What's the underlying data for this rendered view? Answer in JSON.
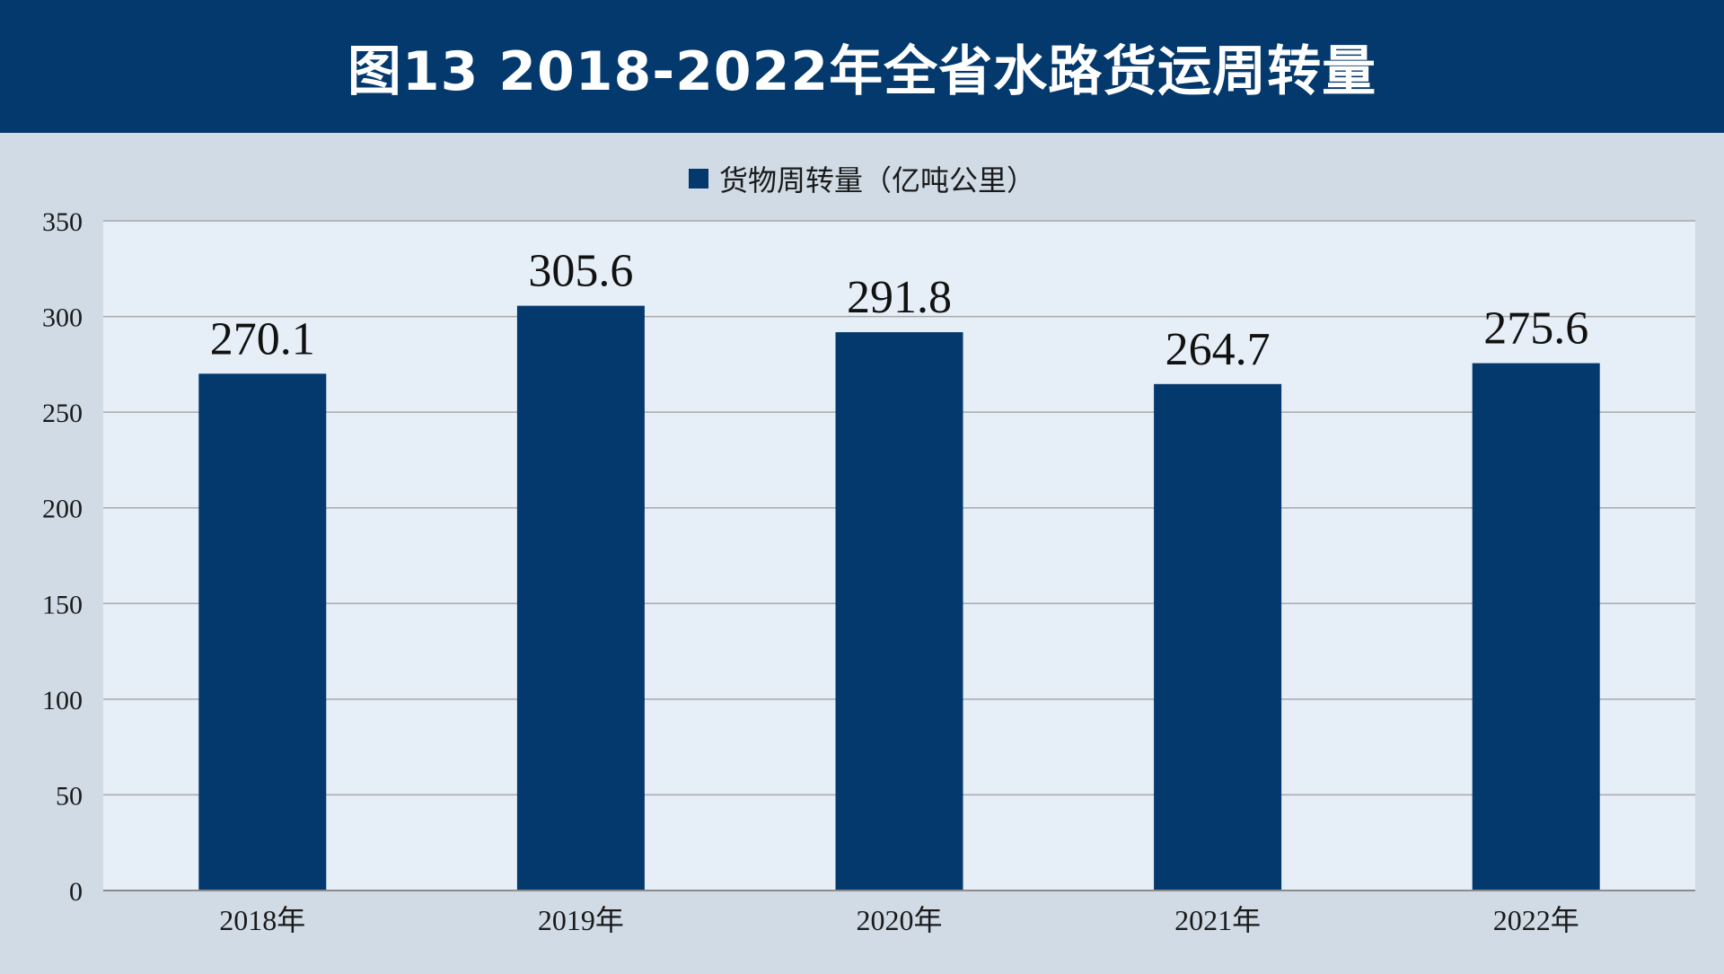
{
  "title": "图13  2018-2022年全省水路货运周转量",
  "chart_data": {
    "type": "bar",
    "categories": [
      "2018年",
      "2019年",
      "2020年",
      "2021年",
      "2022年"
    ],
    "series": [
      {
        "name": "货物周转量（亿吨公里）",
        "values": [
          270.1,
          305.6,
          291.8,
          264.7,
          275.6
        ]
      }
    ],
    "ylim": [
      0,
      350
    ],
    "yticks": [
      0,
      50,
      100,
      150,
      200,
      250,
      300,
      350
    ],
    "grid": true,
    "legend_position": "top-center",
    "data_labels": [
      "270.1",
      "305.6",
      "291.8",
      "264.7",
      "275.6"
    ],
    "colors": {
      "bar": "#03396c",
      "plot_bg": "#e6eef7",
      "outer_bg": "#d0dbe6",
      "grid": "#a9a9a9"
    }
  }
}
